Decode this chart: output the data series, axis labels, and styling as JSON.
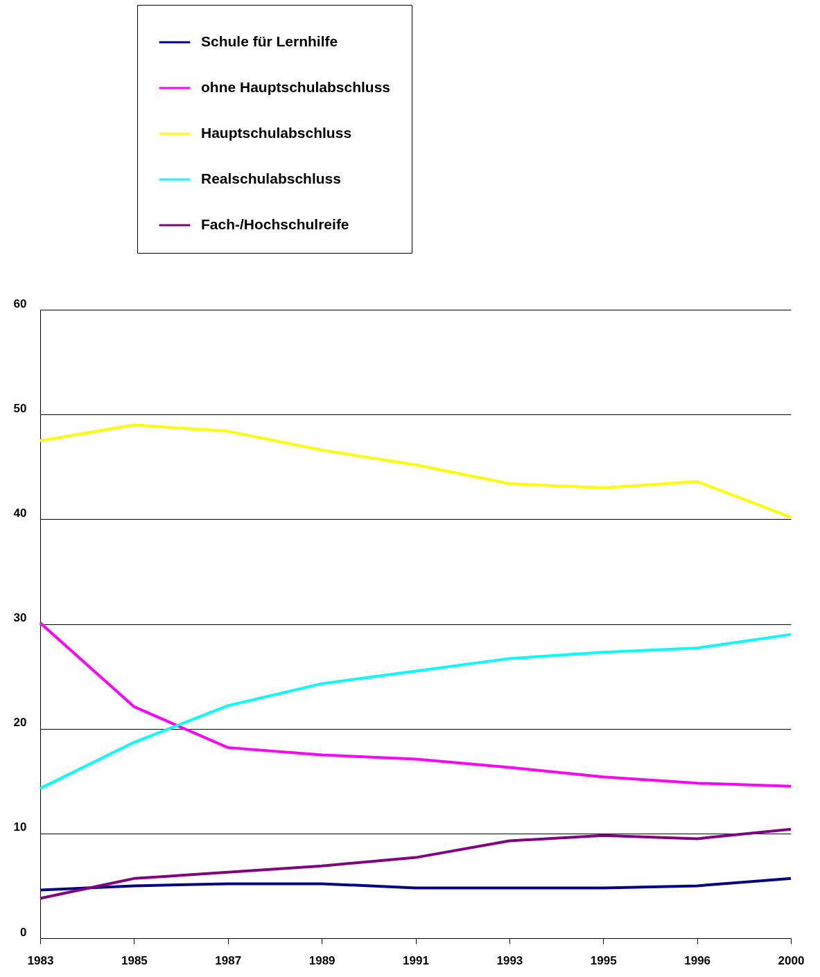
{
  "chart_data": {
    "type": "line",
    "categories": [
      "1983",
      "1985",
      "1987",
      "1989",
      "1991",
      "1993",
      "1995",
      "1996",
      "2000"
    ],
    "series": [
      {
        "name": "Schule für Lernhilfe",
        "color": "#000080",
        "values": [
          4.6,
          5.0,
          5.2,
          5.2,
          4.8,
          4.8,
          4.8,
          5.0,
          5.7
        ]
      },
      {
        "name": "ohne Hauptschulabschluss",
        "color": "#ff00ff",
        "values": [
          30.1,
          22.1,
          18.2,
          17.5,
          17.1,
          16.3,
          15.4,
          14.8,
          14.5
        ]
      },
      {
        "name": "Hauptschulabschluss",
        "color": "#ffff00",
        "values": [
          47.5,
          49.0,
          48.4,
          46.6,
          45.2,
          43.4,
          43.0,
          43.6,
          40.2
        ]
      },
      {
        "name": "Realschulabschluss",
        "color": "#00ffff",
        "values": [
          14.3,
          18.7,
          22.2,
          24.3,
          25.5,
          26.7,
          27.3,
          27.7,
          29.0
        ]
      },
      {
        "name": "Fach-/Hochschulreife",
        "color": "#800080",
        "values": [
          3.8,
          5.7,
          6.3,
          6.9,
          7.7,
          9.3,
          9.8,
          9.5,
          10.4
        ]
      }
    ],
    "ylim": [
      0,
      60
    ],
    "yticks": [
      0,
      10,
      20,
      30,
      40,
      50,
      60
    ],
    "grid": "y",
    "legend": "top"
  }
}
